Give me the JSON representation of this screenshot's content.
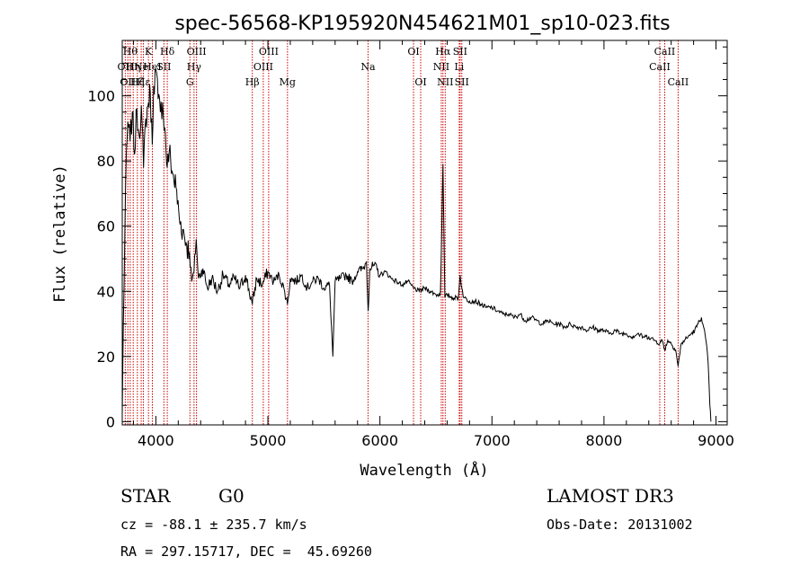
{
  "chart_data": {
    "type": "line",
    "title": "spec-56568-KP195920N454621M01_sp10-023.fits",
    "xlabel": "Wavelength (Å)",
    "ylabel": "Flux (relative)",
    "xlim": [
      3700,
      9100
    ],
    "ylim": [
      -1,
      117
    ],
    "xticks": [
      4000,
      5000,
      6000,
      7000,
      8000,
      9000
    ],
    "yticks": [
      0,
      20,
      40,
      60,
      80,
      100
    ],
    "x_minor_step": 200,
    "y_minor_step": 5,
    "series": [
      {
        "name": "spectrum",
        "points": [
          [
            3700,
            2
          ],
          [
            3710,
            30
          ],
          [
            3730,
            72
          ],
          [
            3750,
            92
          ],
          [
            3770,
            86
          ],
          [
            3790,
            95
          ],
          [
            3810,
            82
          ],
          [
            3830,
            96
          ],
          [
            3850,
            88
          ],
          [
            3870,
            97
          ],
          [
            3890,
            78
          ],
          [
            3910,
            93
          ],
          [
            3935,
            98
          ],
          [
            3950,
            101
          ],
          [
            3968,
            85
          ],
          [
            3980,
            103
          ],
          [
            4000,
            108
          ],
          [
            4020,
            99
          ],
          [
            4040,
            95
          ],
          [
            4060,
            98
          ],
          [
            4080,
            90
          ],
          [
            4101,
            78
          ],
          [
            4120,
            83
          ],
          [
            4150,
            76
          ],
          [
            4180,
            72
          ],
          [
            4210,
            62
          ],
          [
            4240,
            59
          ],
          [
            4270,
            55
          ],
          [
            4300,
            52
          ],
          [
            4320,
            43
          ],
          [
            4340,
            46
          ],
          [
            4360,
            56
          ],
          [
            4380,
            44
          ],
          [
            4420,
            47
          ],
          [
            4460,
            41
          ],
          [
            4500,
            44
          ],
          [
            4550,
            40
          ],
          [
            4600,
            45
          ],
          [
            4650,
            42
          ],
          [
            4700,
            44
          ],
          [
            4750,
            41
          ],
          [
            4800,
            45
          ],
          [
            4861,
            36
          ],
          [
            4900,
            44
          ],
          [
            4950,
            42
          ],
          [
            5000,
            46
          ],
          [
            5050,
            43
          ],
          [
            5100,
            45
          ],
          [
            5150,
            40
          ],
          [
            5175,
            36
          ],
          [
            5200,
            44
          ],
          [
            5250,
            43
          ],
          [
            5300,
            45
          ],
          [
            5350,
            41
          ],
          [
            5400,
            43
          ],
          [
            5450,
            44
          ],
          [
            5500,
            41
          ],
          [
            5550,
            42
          ],
          [
            5580,
            20
          ],
          [
            5600,
            43
          ],
          [
            5650,
            44
          ],
          [
            5700,
            45
          ],
          [
            5750,
            43
          ],
          [
            5800,
            46
          ],
          [
            5850,
            47
          ],
          [
            5880,
            49
          ],
          [
            5895,
            34
          ],
          [
            5910,
            47
          ],
          [
            5950,
            48
          ],
          [
            6000,
            45
          ],
          [
            6050,
            46
          ],
          [
            6100,
            44
          ],
          [
            6150,
            43
          ],
          [
            6200,
            42
          ],
          [
            6250,
            43
          ],
          [
            6300,
            41
          ],
          [
            6350,
            40
          ],
          [
            6400,
            41
          ],
          [
            6450,
            40
          ],
          [
            6500,
            39
          ],
          [
            6540,
            39
          ],
          [
            6563,
            79
          ],
          [
            6580,
            38
          ],
          [
            6600,
            39
          ],
          [
            6650,
            38
          ],
          [
            6700,
            38
          ],
          [
            6716,
            45
          ],
          [
            6731,
            41
          ],
          [
            6750,
            38
          ],
          [
            6800,
            37
          ],
          [
            6850,
            37
          ],
          [
            6900,
            36
          ],
          [
            6950,
            35
          ],
          [
            7000,
            35
          ],
          [
            7050,
            34
          ],
          [
            7100,
            33
          ],
          [
            7150,
            33
          ],
          [
            7200,
            32
          ],
          [
            7250,
            33
          ],
          [
            7300,
            31
          ],
          [
            7350,
            32
          ],
          [
            7400,
            31
          ],
          [
            7450,
            30
          ],
          [
            7500,
            31
          ],
          [
            7550,
            30
          ],
          [
            7600,
            30
          ],
          [
            7650,
            29
          ],
          [
            7700,
            30
          ],
          [
            7750,
            29
          ],
          [
            7800,
            29
          ],
          [
            7850,
            28
          ],
          [
            7900,
            29
          ],
          [
            7950,
            28
          ],
          [
            8000,
            28
          ],
          [
            8050,
            27
          ],
          [
            8100,
            28
          ],
          [
            8150,
            27
          ],
          [
            8200,
            27
          ],
          [
            8250,
            26
          ],
          [
            8300,
            27
          ],
          [
            8350,
            26
          ],
          [
            8400,
            26
          ],
          [
            8450,
            25
          ],
          [
            8498,
            24
          ],
          [
            8520,
            25
          ],
          [
            8542,
            22
          ],
          [
            8570,
            25
          ],
          [
            8600,
            24
          ],
          [
            8640,
            22
          ],
          [
            8662,
            17
          ],
          [
            8690,
            24
          ],
          [
            8720,
            25
          ],
          [
            8750,
            26
          ],
          [
            8780,
            27
          ],
          [
            8810,
            28
          ],
          [
            8840,
            30
          ],
          [
            8870,
            32
          ],
          [
            8890,
            29
          ],
          [
            8910,
            25
          ],
          [
            8930,
            18
          ],
          [
            8945,
            5
          ],
          [
            8955,
            0
          ]
        ]
      }
    ],
    "lines": [
      {
        "w": 3727,
        "label": "OII",
        "tier": 1
      },
      {
        "w": 3750,
        "label": "OII",
        "tier": 2
      },
      {
        "w": 3771,
        "label": "Hθ",
        "tier": 0
      },
      {
        "w": 3798,
        "label": "Hη",
        "tier": 1
      },
      {
        "w": 3835,
        "label": "Hζ",
        "tier": 2
      },
      {
        "w": 3869,
        "label": "Ne",
        "tier": 1
      },
      {
        "w": 3889,
        "label": "Hε",
        "tier": 2
      },
      {
        "w": 3934,
        "label": "K",
        "tier": 0
      },
      {
        "w": 3969,
        "label": "HeI",
        "tier": 1
      },
      {
        "w": 4072,
        "label": "SII",
        "tier": 1
      },
      {
        "w": 4102,
        "label": "Hδ",
        "tier": 0
      },
      {
        "w": 4304,
        "label": "G",
        "tier": 2
      },
      {
        "w": 4341,
        "label": "Hγ",
        "tier": 1
      },
      {
        "w": 4363,
        "label": "OIII",
        "tier": 0
      },
      {
        "w": 4861,
        "label": "Hβ",
        "tier": 2
      },
      {
        "w": 4959,
        "label": "OIII",
        "tier": 1
      },
      {
        "w": 5007,
        "label": "OIII",
        "tier": 0
      },
      {
        "w": 5175,
        "label": "Mg",
        "tier": 2
      },
      {
        "w": 5894,
        "label": "Na",
        "tier": 1
      },
      {
        "w": 6300,
        "label": "OI",
        "tier": 0
      },
      {
        "w": 6364,
        "label": "OI",
        "tier": 2
      },
      {
        "w": 6548,
        "label": "NII",
        "tier": 1
      },
      {
        "w": 6563,
        "label": "Hα",
        "tier": 0
      },
      {
        "w": 6583,
        "label": "NII",
        "tier": 2
      },
      {
        "w": 6716,
        "label": "SII",
        "tier": 0
      },
      {
        "w": 6708,
        "label": "Li",
        "tier": 1
      },
      {
        "w": 6731,
        "label": "SII",
        "tier": 2
      },
      {
        "w": 8498,
        "label": "CaII",
        "tier": 1
      },
      {
        "w": 8542,
        "label": "CaII",
        "tier": 0
      },
      {
        "w": 8662,
        "label": "CaII",
        "tier": 2
      }
    ]
  },
  "info": {
    "class": "STAR",
    "subclass": "G0",
    "survey": "LAMOST DR3",
    "redshift": "cz = -88.1 ± 235.7 km/s",
    "obsdate": "Obs-Date: 20131002",
    "coords": "RA = 297.15717, DEC =  45.69260"
  },
  "colors": {
    "line_marker": "#cc0000",
    "spectrum": "#000000",
    "frame": "#000000"
  }
}
